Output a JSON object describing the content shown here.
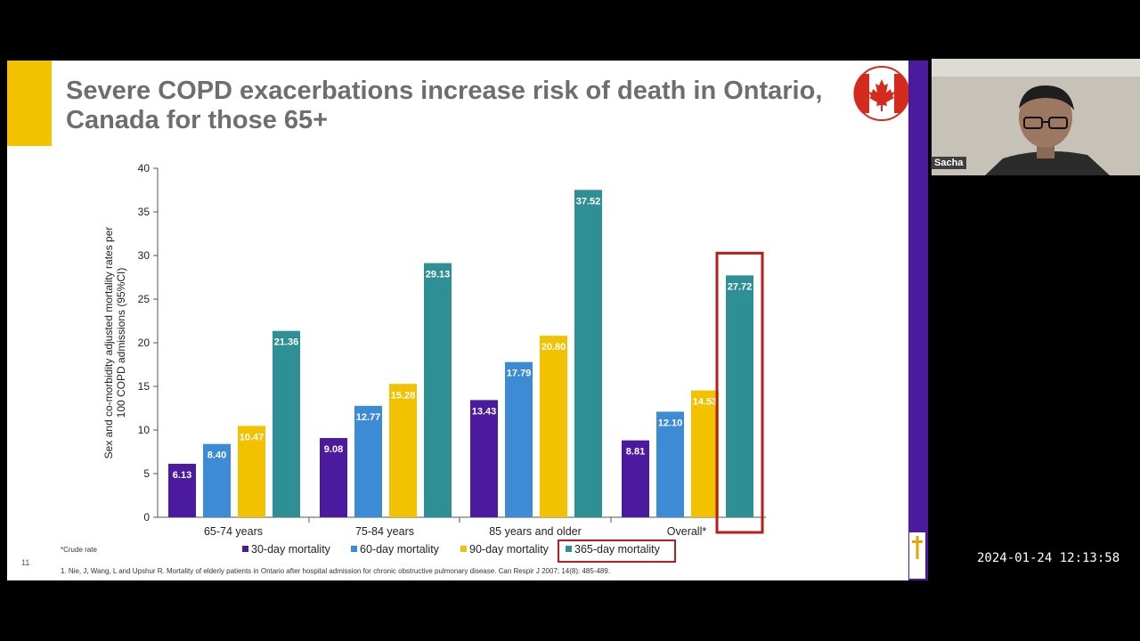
{
  "slide": {
    "title": "Severe COPD exacerbations increase risk of death in Ontario, Canada for those 65+",
    "page_number": "11",
    "footnote_crude": "*Crude rate",
    "reference": "1. Nie, J, Wang, L and Upshur R. Mortality of elderly patients in Ontario after hospital admission for chronic obstructive pulmonary disease. Can Respir J 2007; 14(8): 485-489.",
    "colors": {
      "accent": "#f2c200",
      "brand_purple": "#4b1a9e",
      "highlight": "#b81c1c",
      "title": "#6e6e6e"
    }
  },
  "chart_data": {
    "type": "bar",
    "title": "",
    "xlabel": "",
    "ylabel": "Sex and co-morbidity adjusted mortality rates per 100 COPD admissions (95%CI)",
    "ylim": [
      0,
      40
    ],
    "yticks": [
      0,
      5,
      10,
      15,
      20,
      25,
      30,
      35,
      40
    ],
    "categories": [
      "65-74 years",
      "75-84 years",
      "85 years and older",
      "Overall*"
    ],
    "series": [
      {
        "name": "30-day mortality",
        "color": "#4b1a9e",
        "values": [
          6.13,
          9.08,
          13.43,
          8.81
        ],
        "labels": [
          "6.13",
          "9.08",
          "13.43",
          "8.81"
        ]
      },
      {
        "name": "60-day mortality",
        "color": "#3d8bd4",
        "values": [
          8.4,
          12.77,
          17.79,
          12.1
        ],
        "labels": [
          "8.40",
          "12.77",
          "17.79",
          "12.10"
        ]
      },
      {
        "name": "90-day mortality",
        "color": "#f2c200",
        "values": [
          10.47,
          15.28,
          20.8,
          14.53
        ],
        "labels": [
          "10.47",
          "15.28",
          "20.80",
          "14.53"
        ]
      },
      {
        "name": "365-day mortality",
        "color": "#2e8f94",
        "values": [
          21.36,
          29.13,
          37.52,
          27.72
        ],
        "labels": [
          "21.36",
          "29.13",
          "37.52",
          "27.72"
        ]
      }
    ],
    "highlight": {
      "category": "Overall*",
      "series": "365-day mortality"
    },
    "legend_position": "bottom-center"
  },
  "video": {
    "participant_name": "Sacha",
    "timestamp": "2024-01-24 12:13:58"
  }
}
